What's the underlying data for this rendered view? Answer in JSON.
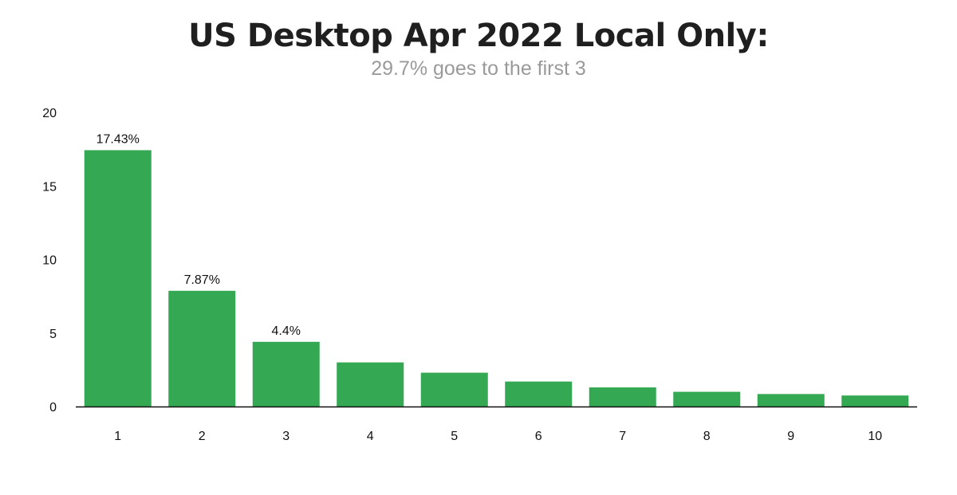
{
  "chart_data": {
    "type": "bar",
    "title": "US Desktop Apr 2022 Local Only:",
    "subtitle": "29.7% goes to the first 3",
    "xlabel": "",
    "ylabel": "",
    "categories": [
      "1",
      "2",
      "3",
      "4",
      "5",
      "6",
      "7",
      "8",
      "9",
      "10"
    ],
    "values": [
      17.43,
      7.87,
      4.4,
      3.0,
      2.3,
      1.7,
      1.3,
      1.0,
      0.85,
      0.75
    ],
    "data_labels": [
      "17.43%",
      "7.87%",
      "4.4%",
      null,
      null,
      null,
      null,
      null,
      null,
      null
    ],
    "ylim": [
      0,
      20
    ],
    "yticks": [
      "0",
      "5",
      "10",
      "15",
      "20"
    ],
    "ytick_values": [
      0,
      5,
      10,
      15,
      20
    ],
    "grid": false,
    "legend": "none",
    "bar_color": "#34a853",
    "axis_color": "#111111"
  }
}
